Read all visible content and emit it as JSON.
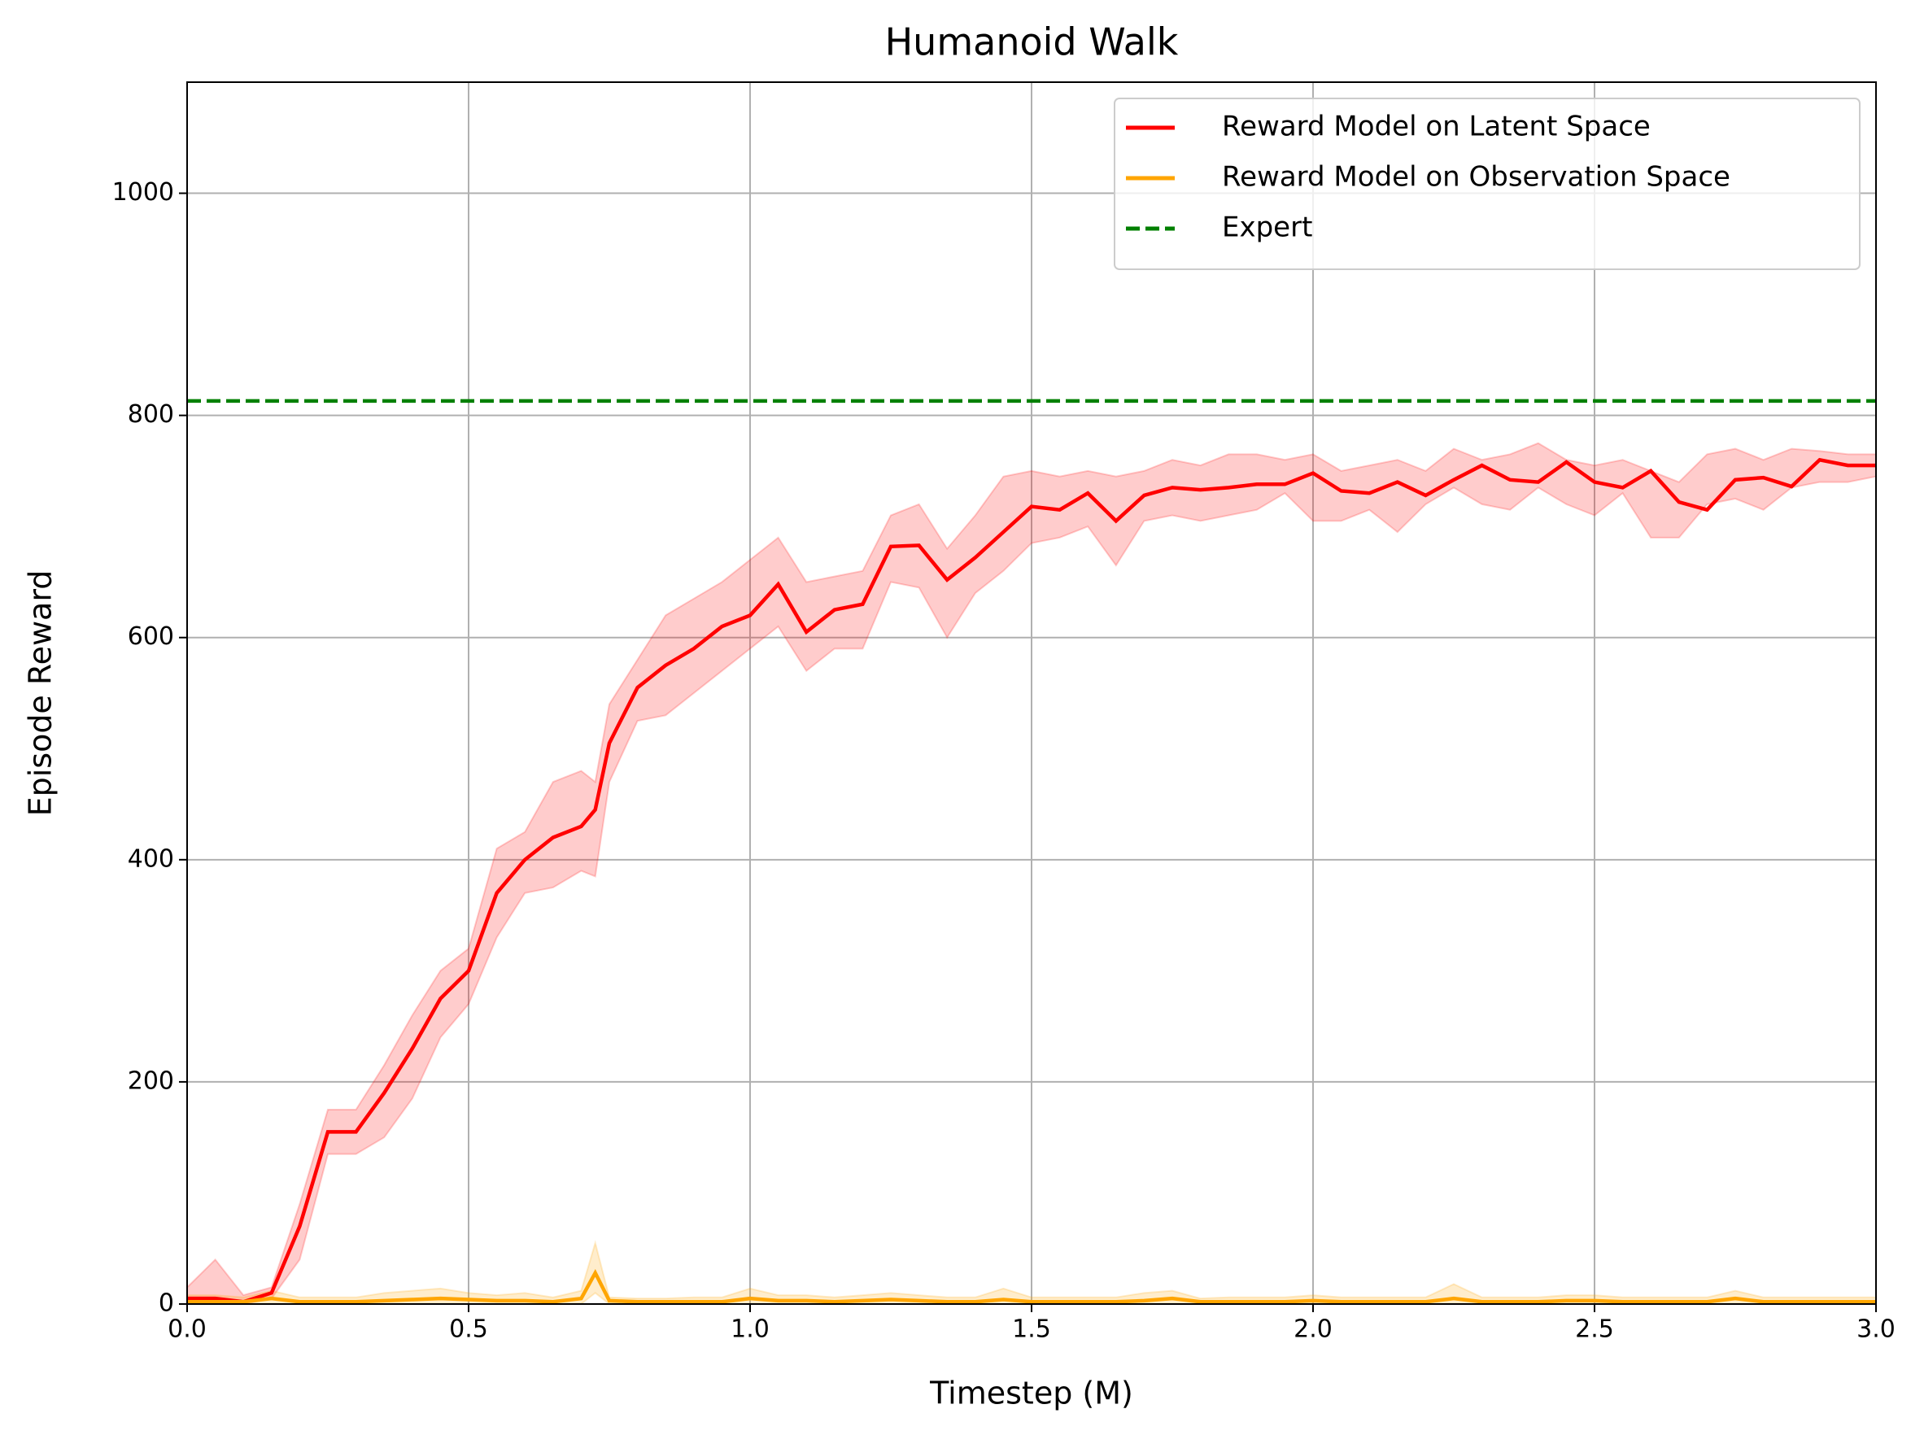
{
  "chart_data": {
    "type": "line",
    "title": "Humanoid Walk",
    "xlabel": "Timestep (M)",
    "ylabel": "Episode Reward",
    "xlim": [
      0,
      3
    ],
    "ylim": [
      0,
      1100
    ],
    "xticks": [
      {
        "value": 0,
        "label": "0.0"
      },
      {
        "value": 0.5,
        "label": "0.5"
      },
      {
        "value": 1,
        "label": "1.0"
      },
      {
        "value": 1.5,
        "label": "1.5"
      },
      {
        "value": 2,
        "label": "2.0"
      },
      {
        "value": 2.5,
        "label": "2.5"
      },
      {
        "value": 3,
        "label": "3.0"
      }
    ],
    "yticks": [
      0,
      200,
      400,
      600,
      800,
      1000
    ],
    "grid": true,
    "legend": "upper right",
    "x": [
      0,
      0.05,
      0.1,
      0.15,
      0.2,
      0.25,
      0.3,
      0.35,
      0.4,
      0.45,
      0.5,
      0.55,
      0.6,
      0.65,
      0.7,
      0.725,
      0.75,
      0.8,
      0.85,
      0.9,
      0.95,
      1,
      1.05,
      1.1,
      1.15,
      1.2,
      1.25,
      1.3,
      1.35,
      1.4,
      1.45,
      1.5,
      1.55,
      1.6,
      1.65,
      1.7,
      1.75,
      1.8,
      1.85,
      1.9,
      1.95,
      2,
      2.05,
      2.1,
      2.15,
      2.2,
      2.25,
      2.3,
      2.35,
      2.4,
      2.45,
      2.5,
      2.55,
      2.6,
      2.65,
      2.7,
      2.75,
      2.8,
      2.85,
      2.9,
      2.95,
      3
    ],
    "series": [
      {
        "name": "Reward Model on Latent Space",
        "color": "#ff0000",
        "values": [
          5,
          5,
          2,
          10,
          70,
          155,
          155,
          190,
          230,
          275,
          300,
          370,
          400,
          420,
          430,
          445,
          505,
          555,
          575,
          590,
          610,
          620,
          648,
          605,
          625,
          630,
          682,
          683,
          652,
          672,
          695,
          718,
          715,
          730,
          705,
          728,
          735,
          733,
          735,
          738,
          738,
          748,
          732,
          730,
          740,
          728,
          742,
          755,
          742,
          740,
          758,
          740,
          735,
          750,
          722,
          715,
          742,
          744,
          736,
          760,
          755,
          755
        ],
        "upper": [
          15,
          40,
          8,
          15,
          90,
          175,
          175,
          215,
          260,
          300,
          320,
          410,
          425,
          470,
          480,
          470,
          540,
          580,
          620,
          635,
          650,
          670,
          690,
          650,
          655,
          660,
          710,
          720,
          680,
          710,
          745,
          750,
          745,
          750,
          745,
          750,
          760,
          755,
          765,
          765,
          760,
          765,
          750,
          755,
          760,
          750,
          770,
          760,
          765,
          775,
          760,
          755,
          760,
          750,
          740,
          765,
          770,
          760,
          770,
          768,
          765,
          765
        ],
        "lower": [
          0,
          0,
          0,
          5,
          40,
          135,
          135,
          150,
          185,
          240,
          270,
          330,
          370,
          375,
          390,
          385,
          470,
          525,
          530,
          550,
          570,
          590,
          610,
          570,
          590,
          590,
          650,
          645,
          600,
          640,
          660,
          685,
          690,
          700,
          665,
          705,
          710,
          705,
          710,
          715,
          730,
          705,
          705,
          715,
          695,
          720,
          735,
          720,
          715,
          735,
          720,
          710,
          730,
          690,
          690,
          720,
          725,
          715,
          735,
          740,
          740,
          745
        ]
      },
      {
        "name": "Reward Model on Observation Space",
        "color": "#ffa500",
        "values": [
          2,
          2,
          2,
          5,
          2,
          2,
          2,
          3,
          4,
          5,
          4,
          3,
          3,
          2,
          5,
          28,
          3,
          2,
          2,
          2,
          2,
          5,
          3,
          3,
          2,
          3,
          4,
          3,
          2,
          2,
          4,
          2,
          2,
          2,
          2,
          3,
          5,
          2,
          2,
          2,
          2,
          3,
          2,
          2,
          2,
          2,
          5,
          2,
          2,
          2,
          3,
          3,
          2,
          2,
          2,
          2,
          5,
          2,
          2,
          2,
          2,
          2
        ],
        "upper": [
          8,
          8,
          6,
          12,
          6,
          6,
          6,
          10,
          12,
          14,
          10,
          8,
          10,
          6,
          12,
          55,
          6,
          5,
          5,
          6,
          6,
          14,
          8,
          8,
          6,
          8,
          10,
          8,
          6,
          6,
          14,
          6,
          6,
          6,
          6,
          10,
          12,
          5,
          6,
          6,
          6,
          8,
          6,
          6,
          6,
          6,
          18,
          6,
          6,
          6,
          8,
          8,
          6,
          6,
          6,
          6,
          12,
          6,
          6,
          6,
          6,
          6
        ],
        "lower": [
          0,
          0,
          0,
          0,
          0,
          0,
          0,
          0,
          0,
          0,
          0,
          0,
          0,
          0,
          0,
          10,
          0,
          0,
          0,
          0,
          0,
          0,
          0,
          0,
          0,
          0,
          0,
          0,
          0,
          0,
          0,
          0,
          0,
          0,
          0,
          0,
          0,
          0,
          0,
          0,
          0,
          0,
          0,
          0,
          0,
          0,
          0,
          0,
          0,
          0,
          0,
          0,
          0,
          0,
          0,
          0,
          0,
          0,
          0,
          0,
          0,
          0
        ]
      }
    ],
    "hlines": [
      {
        "name": "Expert",
        "color": "#008000",
        "value": 813,
        "style": "dashed"
      }
    ]
  }
}
